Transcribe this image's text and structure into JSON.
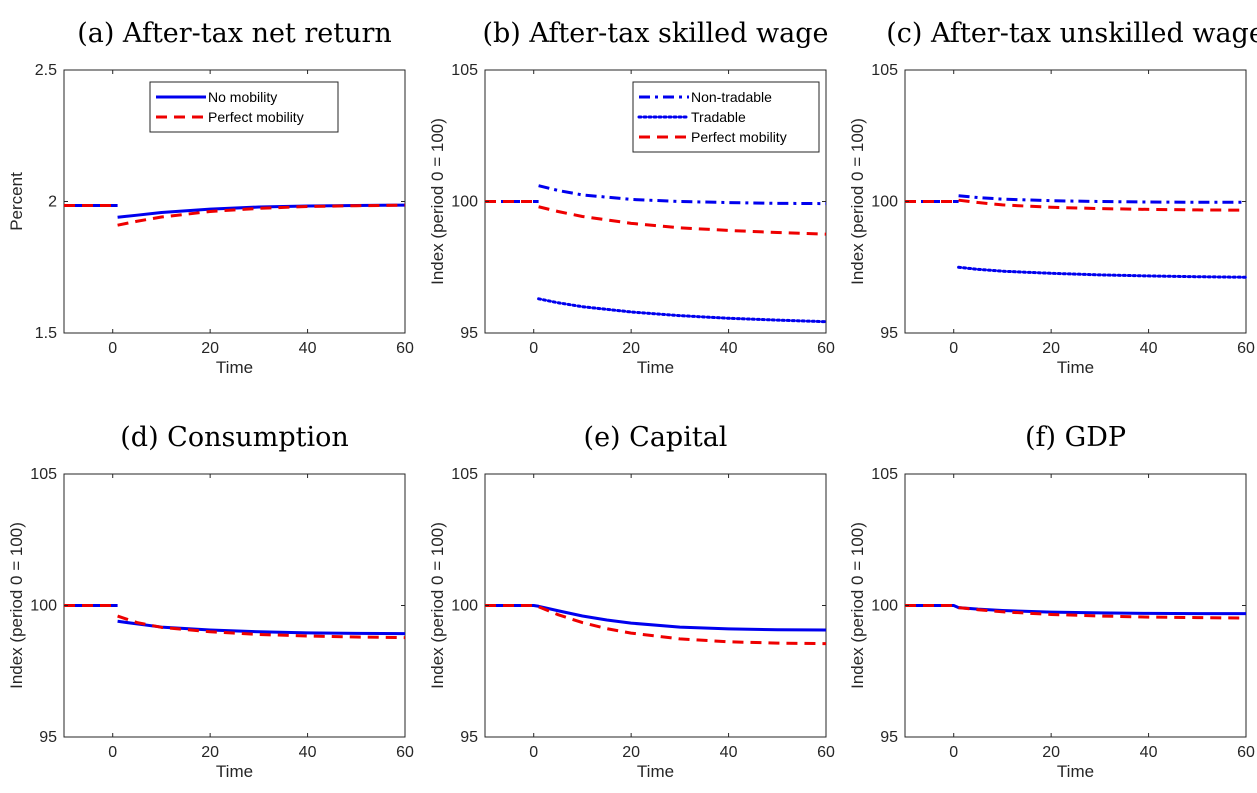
{
  "colors": {
    "blue": "#0000ee",
    "red": "#ee0000",
    "axis": "#262626"
  },
  "chart_data": [
    {
      "type": "line",
      "title": "(a) After-tax net return",
      "xlabel": "Time",
      "ylabel": "Percent",
      "xlim": [
        -10,
        60
      ],
      "ylim": [
        1.5,
        2.5
      ],
      "xticks": [
        0,
        20,
        40,
        60
      ],
      "yticks": [
        1.5,
        2,
        2.5
      ],
      "yticklabels": [
        "1.5",
        "2",
        "2.5"
      ],
      "legend_position": "top-center",
      "series": [
        {
          "name": "No mobility",
          "color": "blue",
          "style": "solid",
          "segments": [
            {
              "x": [
                -10,
                0,
                1
              ],
              "y": [
                1.985,
                1.985,
                1.985
              ]
            },
            {
              "x": [
                1,
                5,
                10,
                20,
                30,
                40,
                50,
                60
              ],
              "y": [
                1.94,
                1.948,
                1.958,
                1.971,
                1.979,
                1.983,
                1.985,
                1.986
              ]
            }
          ]
        },
        {
          "name": "Perfect mobility",
          "color": "red",
          "style": "dashed",
          "segments": [
            {
              "x": [
                -10,
                0,
                1
              ],
              "y": [
                1.985,
                1.985,
                1.985
              ]
            },
            {
              "x": [
                1,
                5,
                10,
                20,
                30,
                40,
                50,
                60
              ],
              "y": [
                1.91,
                1.925,
                1.941,
                1.962,
                1.974,
                1.981,
                1.984,
                1.986
              ]
            }
          ]
        }
      ]
    },
    {
      "type": "line",
      "title": "(b) After-tax skilled wage",
      "xlabel": "Time",
      "ylabel": "Index (period 0 = 100)",
      "xlim": [
        -10,
        60
      ],
      "ylim": [
        95,
        105
      ],
      "xticks": [
        0,
        20,
        40,
        60
      ],
      "yticks": [
        95,
        100,
        105
      ],
      "yticklabels": [
        "95",
        "100",
        "105"
      ],
      "legend_position": "top-right",
      "series": [
        {
          "name": "Non-tradable",
          "color": "blue",
          "style": "dashdot",
          "segments": [
            {
              "x": [
                -10,
                0,
                1
              ],
              "y": [
                100,
                100,
                100
              ]
            },
            {
              "x": [
                1,
                5,
                10,
                20,
                30,
                40,
                50,
                60
              ],
              "y": [
                100.6,
                100.42,
                100.25,
                100.08,
                100.0,
                99.96,
                99.93,
                99.92
              ]
            }
          ]
        },
        {
          "name": "Tradable",
          "color": "blue",
          "style": "dotted",
          "segments": [
            {
              "x": [
                1,
                5,
                10,
                20,
                30,
                40,
                50,
                60
              ],
              "y": [
                96.3,
                96.15,
                96.0,
                95.8,
                95.66,
                95.56,
                95.49,
                95.43
              ]
            }
          ]
        },
        {
          "name": "Perfect mobility",
          "color": "red",
          "style": "dashed",
          "segments": [
            {
              "x": [
                -10,
                0,
                1
              ],
              "y": [
                100,
                100,
                100
              ]
            },
            {
              "x": [
                1,
                5,
                10,
                20,
                30,
                40,
                50,
                60
              ],
              "y": [
                99.8,
                99.62,
                99.43,
                99.17,
                99.0,
                98.9,
                98.82,
                98.76
              ]
            }
          ]
        }
      ]
    },
    {
      "type": "line",
      "title": "(c) After-tax unskilled wage",
      "xlabel": "Time",
      "ylabel": "Index (period 0 = 100)",
      "xlim": [
        -10,
        60
      ],
      "ylim": [
        95,
        105
      ],
      "xticks": [
        0,
        20,
        40,
        60
      ],
      "yticks": [
        95,
        100,
        105
      ],
      "yticklabels": [
        "95",
        "100",
        "105"
      ],
      "series": [
        {
          "color": "blue",
          "style": "dashdot",
          "segments": [
            {
              "x": [
                -10,
                0,
                1
              ],
              "y": [
                100,
                100,
                100
              ]
            },
            {
              "x": [
                1,
                5,
                10,
                20,
                30,
                40,
                50,
                60
              ],
              "y": [
                100.22,
                100.15,
                100.09,
                100.03,
                100.0,
                99.98,
                99.97,
                99.97
              ]
            }
          ]
        },
        {
          "color": "blue",
          "style": "dotted",
          "segments": [
            {
              "x": [
                1,
                5,
                10,
                20,
                30,
                40,
                50,
                60
              ],
              "y": [
                97.5,
                97.42,
                97.35,
                97.27,
                97.21,
                97.17,
                97.14,
                97.12
              ]
            }
          ]
        },
        {
          "color": "red",
          "style": "dashed",
          "segments": [
            {
              "x": [
                -10,
                0,
                1
              ],
              "y": [
                100,
                100,
                100
              ]
            },
            {
              "x": [
                1,
                5,
                10,
                20,
                30,
                40,
                50,
                60
              ],
              "y": [
                100.05,
                99.96,
                99.87,
                99.78,
                99.73,
                99.7,
                99.68,
                99.67
              ]
            }
          ]
        }
      ]
    },
    {
      "type": "line",
      "title": "(d) Consumption",
      "xlabel": "Time",
      "ylabel": "Index (period 0 = 100)",
      "xlim": [
        -10,
        60
      ],
      "ylim": [
        95,
        105
      ],
      "xticks": [
        0,
        20,
        40,
        60
      ],
      "yticks": [
        95,
        100,
        105
      ],
      "yticklabels": [
        "95",
        "100",
        "105"
      ],
      "series": [
        {
          "color": "blue",
          "style": "solid",
          "segments": [
            {
              "x": [
                -10,
                0,
                1
              ],
              "y": [
                100,
                100,
                100
              ]
            },
            {
              "x": [
                1,
                5,
                10,
                20,
                30,
                40,
                50,
                60
              ],
              "y": [
                99.4,
                99.3,
                99.18,
                99.07,
                99.0,
                98.96,
                98.94,
                98.93
              ]
            }
          ]
        },
        {
          "color": "red",
          "style": "dashed",
          "segments": [
            {
              "x": [
                -10,
                0,
                1
              ],
              "y": [
                100,
                100,
                100
              ]
            },
            {
              "x": [
                1,
                5,
                10,
                20,
                30,
                40,
                50,
                60
              ],
              "y": [
                99.6,
                99.35,
                99.17,
                99.0,
                98.9,
                98.84,
                98.8,
                98.78
              ]
            }
          ]
        }
      ]
    },
    {
      "type": "line",
      "title": "(e) Capital",
      "xlabel": "Time",
      "ylabel": "Index (period 0 = 100)",
      "xlim": [
        -10,
        60
      ],
      "ylim": [
        95,
        105
      ],
      "xticks": [
        0,
        20,
        40,
        60
      ],
      "yticks": [
        95,
        100,
        105
      ],
      "yticklabels": [
        "95",
        "100",
        "105"
      ],
      "series": [
        {
          "color": "blue",
          "style": "solid",
          "segments": [
            {
              "x": [
                -10,
                0,
                1,
                5,
                10,
                15,
                20,
                30,
                40,
                50,
                60
              ],
              "y": [
                100,
                100,
                99.97,
                99.8,
                99.6,
                99.45,
                99.33,
                99.18,
                99.11,
                99.08,
                99.07
              ]
            }
          ]
        },
        {
          "color": "red",
          "style": "dashed",
          "segments": [
            {
              "x": [
                -10,
                0,
                1,
                5,
                10,
                15,
                20,
                30,
                40,
                50,
                60
              ],
              "y": [
                100,
                100,
                99.95,
                99.65,
                99.35,
                99.12,
                98.95,
                98.73,
                98.62,
                98.57,
                98.55
              ]
            }
          ]
        }
      ]
    },
    {
      "type": "line",
      "title": "(f) GDP",
      "xlabel": "Time",
      "ylabel": "Index (period 0 = 100)",
      "xlim": [
        -10,
        60
      ],
      "ylim": [
        95,
        105
      ],
      "xticks": [
        0,
        20,
        40,
        60
      ],
      "yticks": [
        95,
        100,
        105
      ],
      "yticklabels": [
        "95",
        "100",
        "105"
      ],
      "series": [
        {
          "color": "blue",
          "style": "solid",
          "segments": [
            {
              "x": [
                -10,
                0,
                1,
                5,
                10,
                20,
                30,
                40,
                50,
                60
              ],
              "y": [
                100,
                100,
                99.92,
                99.86,
                99.81,
                99.75,
                99.72,
                99.7,
                99.69,
                99.69
              ]
            }
          ]
        },
        {
          "color": "red",
          "style": "dashed",
          "segments": [
            {
              "x": [
                -10,
                0,
                1,
                5,
                10,
                20,
                30,
                40,
                50,
                60
              ],
              "y": [
                100,
                100,
                99.92,
                99.84,
                99.76,
                99.66,
                99.6,
                99.56,
                99.54,
                99.52
              ]
            }
          ]
        }
      ]
    }
  ]
}
